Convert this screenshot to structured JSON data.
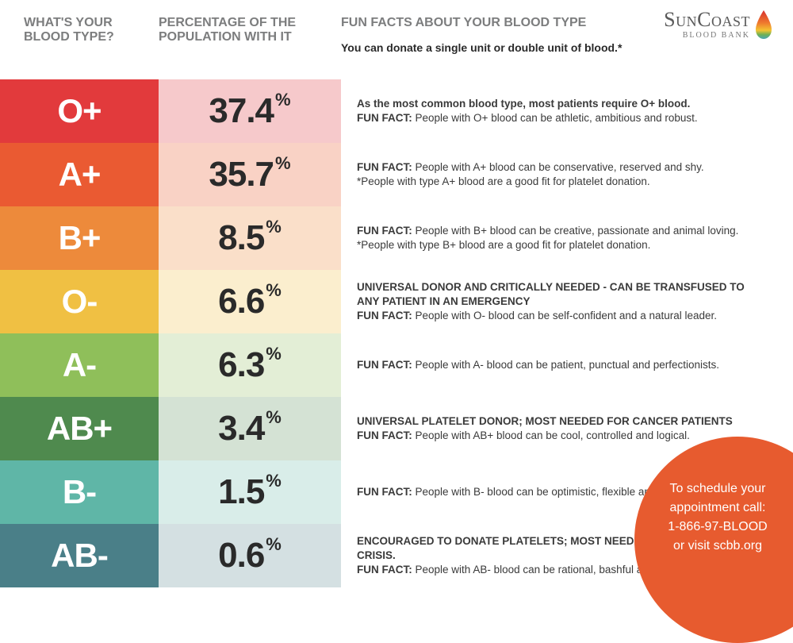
{
  "header": {
    "col1": "WHAT'S YOUR BLOOD TYPE?",
    "col2": "PERCENTAGE OF THE POPULATION WITH IT",
    "col3_title": "FUN FACTS ABOUT YOUR BLOOD TYPE",
    "col3_sub": "You can donate a single unit or double unit of blood.*"
  },
  "logo": {
    "brand_part1": "Sun",
    "brand_part2": "Coast",
    "sub": "BLOOD BANK"
  },
  "fun_fact_label": "FUN FACT:",
  "rows": [
    {
      "type": "O+",
      "pct": "37.4",
      "type_bg": "#e23a3c",
      "pct_bg": "#f6c9cb",
      "lead": "As the most common blood type, most patients require O+ blood.",
      "fact": "People with O+ blood can be athletic, ambitious and robust.",
      "note": ""
    },
    {
      "type": "A+",
      "pct": "35.7",
      "type_bg": "#ea5a32",
      "pct_bg": "#f9d2c5",
      "lead": "",
      "fact": "People with A+ blood can be conservative, reserved and shy.",
      "note": "*People with type A+ blood are a good fit for platelet donation."
    },
    {
      "type": "B+",
      "pct": "8.5",
      "type_bg": "#ed8a3b",
      "pct_bg": "#fadfc9",
      "lead": "",
      "fact": "People with B+ blood can be creative, passionate and animal loving.",
      "note": "*People with type B+ blood are a good fit for platelet donation."
    },
    {
      "type": "O-",
      "pct": "6.6",
      "type_bg": "#f0c043",
      "pct_bg": "#fbeece",
      "lead": "UNIVERSAL DONOR AND CRITICALLY NEEDED - CAN BE TRANSFUSED TO ANY PATIENT IN AN EMERGENCY",
      "fact": "People with O- blood can be self-confident and a natural leader.",
      "note": ""
    },
    {
      "type": "A-",
      "pct": "6.3",
      "type_bg": "#8fbf5a",
      "pct_bg": "#e3eed6",
      "lead": "",
      "fact": "People with A- blood can be patient, punctual and perfectionists.",
      "note": ""
    },
    {
      "type": "AB+",
      "pct": "3.4",
      "type_bg": "#4f8a4e",
      "pct_bg": "#d4e2d4",
      "lead": "UNIVERSAL PLATELET DONOR; MOST NEEDED FOR CANCER PATIENTS",
      "fact": "People with AB+ blood can be cool, controlled and logical.",
      "note": ""
    },
    {
      "type": "B-",
      "pct": "1.5",
      "type_bg": "#5fb6a7",
      "pct_bg": "#d9ede9",
      "lead": "",
      "fact": "People with B- blood can be optimistic, flexible and individualistic.",
      "note": ""
    },
    {
      "type": "AB-",
      "pct": "0.6",
      "type_bg": "#4a7f88",
      "pct_bg": "#d4e0e2",
      "lead": "ENCOURAGED TO DONATE PLATELETS; MOST NEEDED BY NEWBORNS IN CRISIS.",
      "fact": "People with AB- blood can be rational, bashful and empathetic.",
      "note": ""
    }
  ],
  "cta": {
    "line1": "To schedule your",
    "line2": "appointment call:",
    "line3": "1-866-97-BLOOD",
    "line4": "or visit scbb.org",
    "bg": "#e75b2f"
  },
  "styles": {
    "header_text_color": "#7c7d7e",
    "body_text_color": "#3a3a3a",
    "pct_text_color": "#2a2a2a",
    "type_text_color": "#ffffff"
  }
}
